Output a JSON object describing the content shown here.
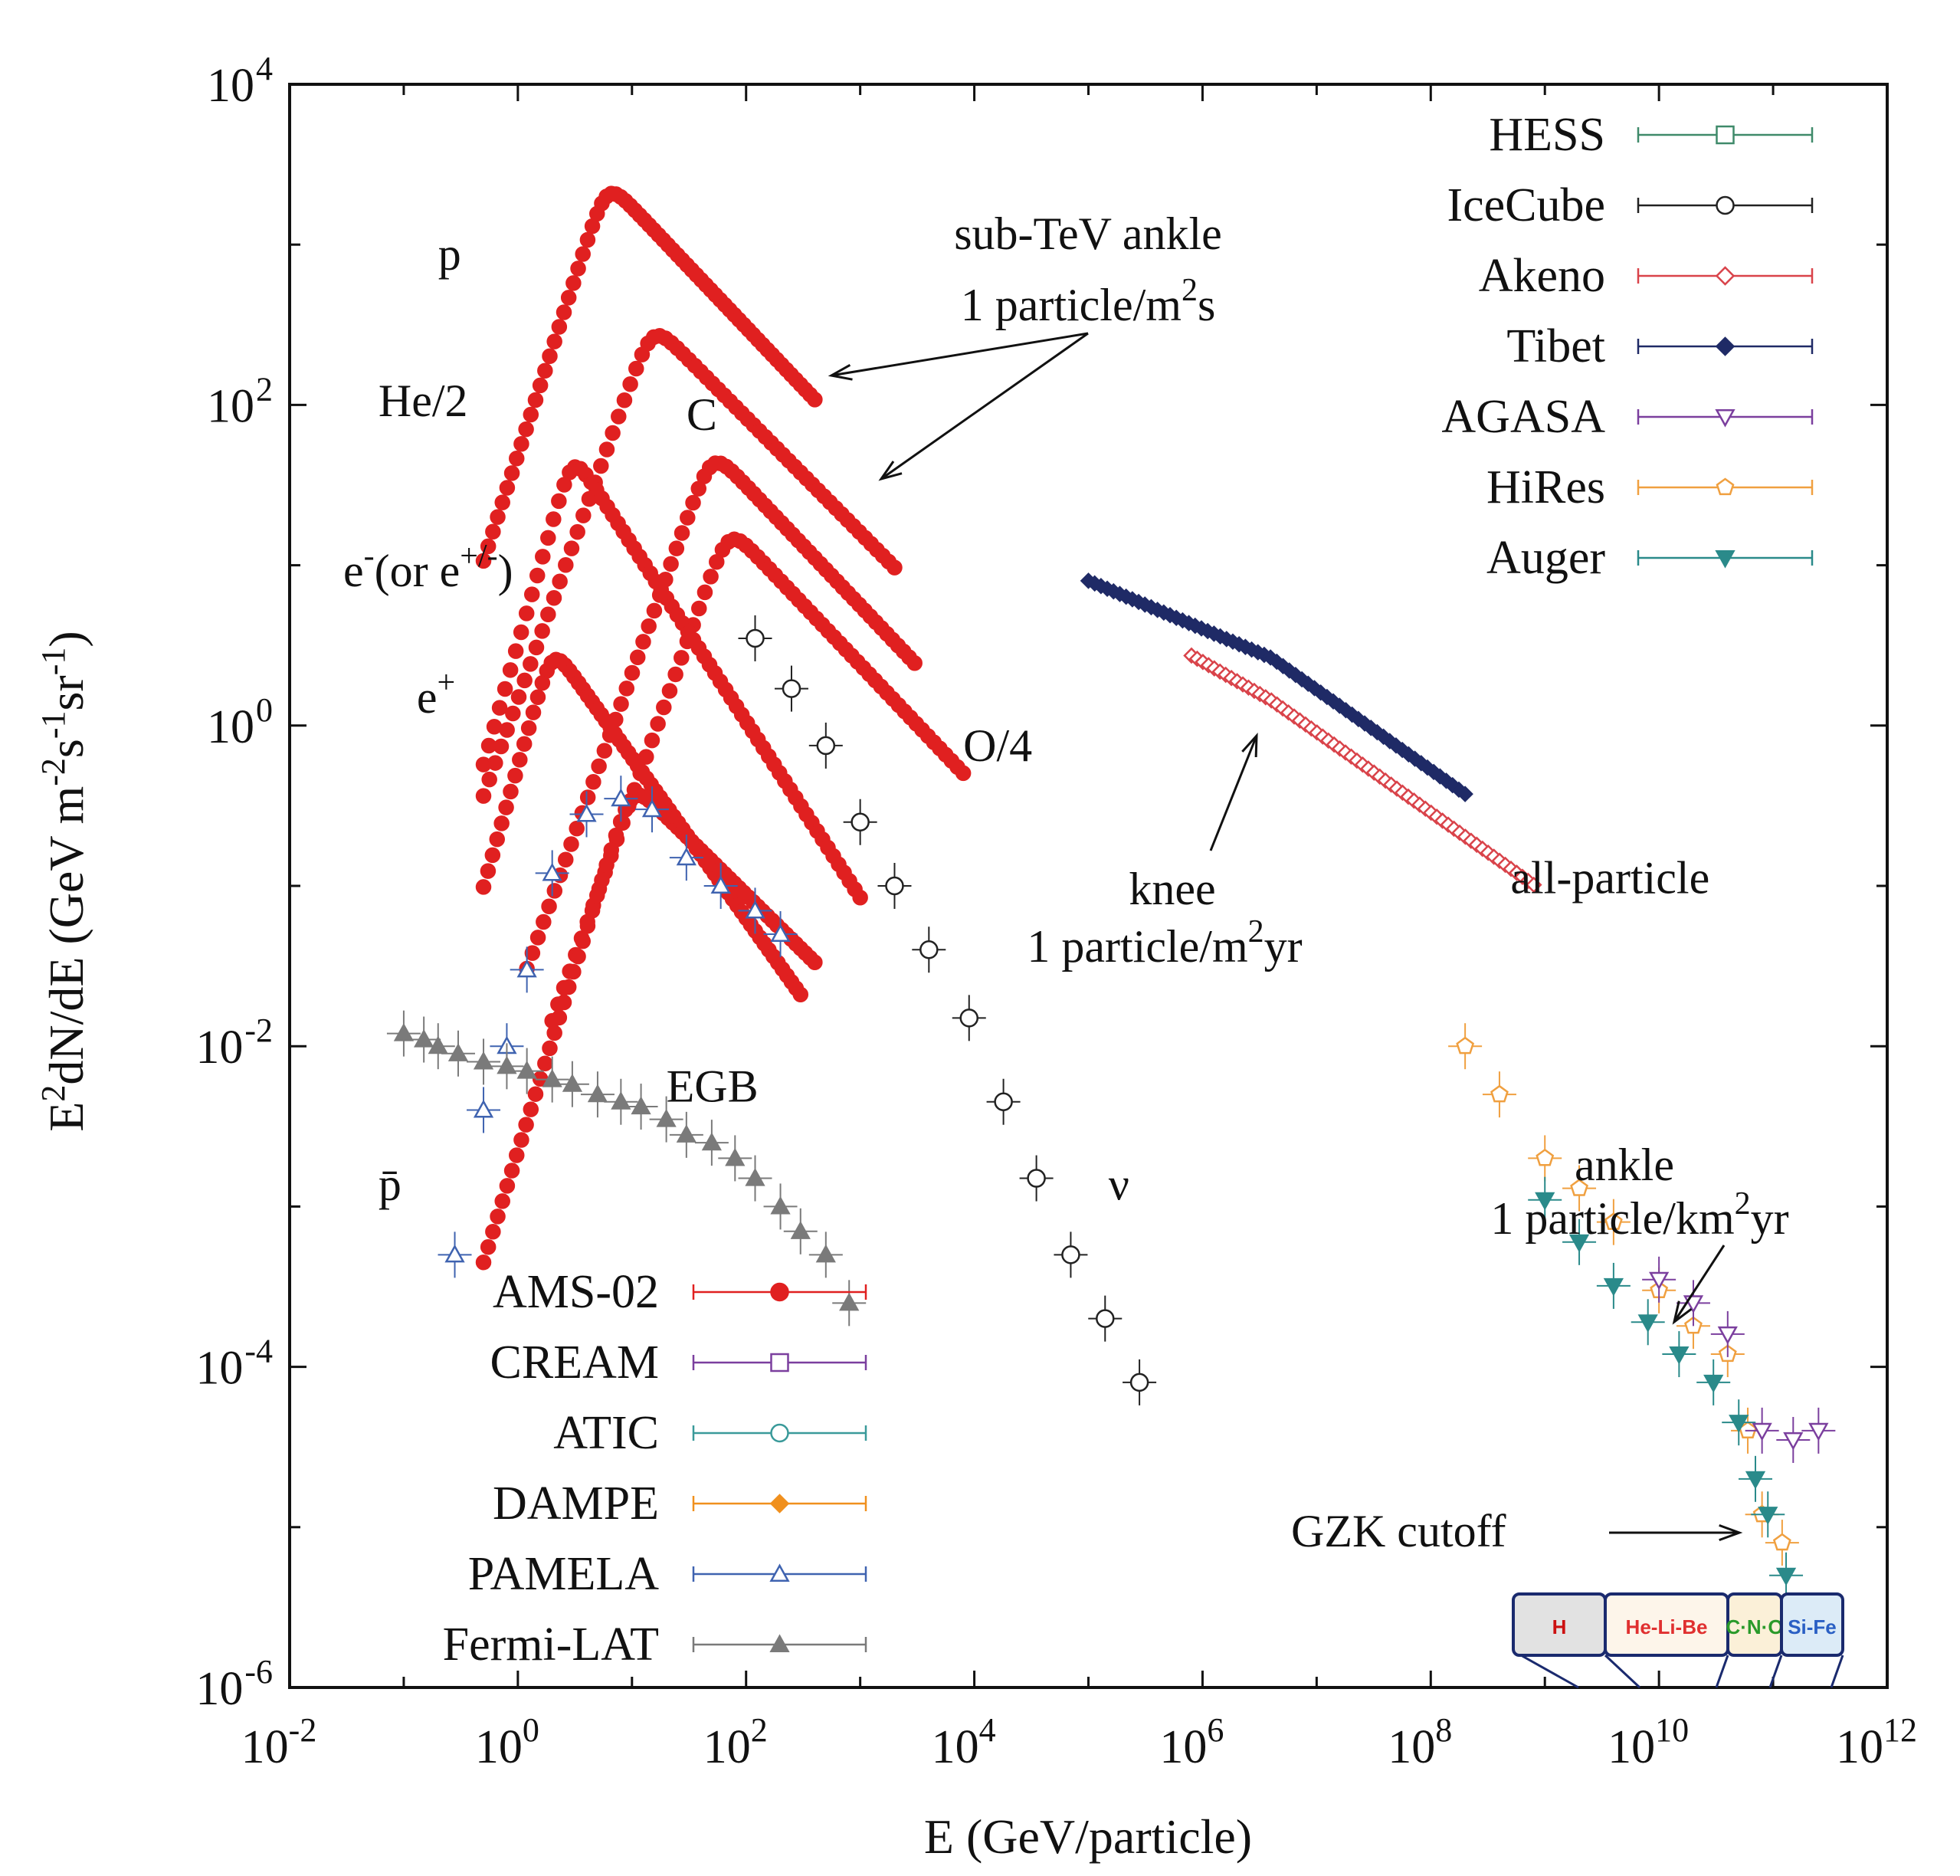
{
  "chart_data": {
    "type": "scatter",
    "xscale": "log",
    "yscale": "log",
    "xlim": [
      0.01,
      1000000000000.0
    ],
    "ylim": [
      1e-06,
      10000.0
    ],
    "xlabel": "E (GeV/particle)",
    "ylabel": "E2dN/dE (GeV m-2s-1sr-1)",
    "ylabel_parts": {
      "base1": "E",
      "sup1": "2",
      "text": "dN/dE (GeV m",
      "sup2": "-2",
      "s": "s",
      "sup3": "-1",
      "sr": "sr",
      "sup4": "-1",
      "close": ")"
    },
    "x_ticks": [
      {
        "value": 0.01,
        "base": "10",
        "exp": "-2"
      },
      {
        "value": 1,
        "base": "10",
        "exp": "0"
      },
      {
        "value": 100,
        "base": "10",
        "exp": "2"
      },
      {
        "value": 10000,
        "base": "10",
        "exp": "4"
      },
      {
        "value": 1000000,
        "base": "10",
        "exp": "6"
      },
      {
        "value": 100000000,
        "base": "10",
        "exp": "8"
      },
      {
        "value": 10000000000,
        "base": "10",
        "exp": "10"
      },
      {
        "value": 1000000000000,
        "base": "10",
        "exp": "12"
      }
    ],
    "y_ticks": [
      {
        "value": 1e-06,
        "base": "10",
        "exp": "-6"
      },
      {
        "value": 0.0001,
        "base": "10",
        "exp": "-4"
      },
      {
        "value": 0.01,
        "base": "10",
        "exp": "-2"
      },
      {
        "value": 1,
        "base": "10",
        "exp": "0"
      },
      {
        "value": 100,
        "base": "10",
        "exp": "2"
      },
      {
        "value": 10000,
        "base": "10",
        "exp": "4"
      }
    ],
    "legend_left": [
      {
        "name": "AMS-02",
        "color": "#e02020",
        "marker": "circle-filled"
      },
      {
        "name": "CREAM",
        "color": "#7b3f9e",
        "marker": "square-open"
      },
      {
        "name": "ATIC",
        "color": "#3a9a9a",
        "marker": "circle-open"
      },
      {
        "name": "DAMPE",
        "color": "#f0901e",
        "marker": "diamond-filled"
      },
      {
        "name": "PAMELA",
        "color": "#3f63b0",
        "marker": "triangle-open"
      },
      {
        "name": "Fermi-LAT",
        "color": "#7a7a7a",
        "marker": "triangle-filled"
      }
    ],
    "legend_right": [
      {
        "name": "HESS",
        "color": "#3f8a6a",
        "marker": "square-open"
      },
      {
        "name": "IceCube",
        "color": "#222222",
        "marker": "circle-open"
      },
      {
        "name": "Akeno",
        "color": "#d9434a",
        "marker": "diamond-open"
      },
      {
        "name": "Tibet",
        "color": "#1f2a66",
        "marker": "diamond-filled"
      },
      {
        "name": "AGASA",
        "color": "#7b3f9e",
        "marker": "triangle-down-open"
      },
      {
        "name": "HiRes",
        "color": "#f0a040",
        "marker": "pentagon-open"
      },
      {
        "name": "Auger",
        "color": "#2a8a8a",
        "marker": "triangle-down-filled"
      }
    ],
    "curve_labels": [
      {
        "text": "p",
        "x": 0.2,
        "y": 700
      },
      {
        "text": "He/2",
        "x": 0.06,
        "y": 85
      },
      {
        "text": "C",
        "x": 30,
        "y": 70
      },
      {
        "text": "O/4",
        "x": 8000,
        "y": 0.6
      },
      {
        "text": "e+",
        "x": 0.13,
        "y": 1.2
      },
      {
        "text": "EGB",
        "x": 20,
        "y": 0.0045
      },
      {
        "text": "p̄",
        "x": 0.06,
        "y": 0.0011
      },
      {
        "text": "ν",
        "x": 150000,
        "y": 0.0011
      },
      {
        "text": "all-particle",
        "x": 500000000.0,
        "y": 0.09
      }
    ],
    "annotations": {
      "sub_tev": {
        "line1": "sub-TeV ankle",
        "line2a": "1 particle/m",
        "sup": "2",
        "line2b": "s"
      },
      "knee": {
        "line1": "knee",
        "line2a": "1 particle/m",
        "sup": "2",
        "line2b": "yr"
      },
      "ankle": {
        "line1": "ankle",
        "line2a": "1 particle/km",
        "sup": "2",
        "line2b": "yr"
      },
      "gzk": {
        "text": "GZK cutoff"
      },
      "electron": {
        "base": "e",
        "sup1": "-",
        "mid": "(or e",
        "sup2": "+/-",
        "close": ")"
      }
    },
    "composition_strip": [
      "H",
      "He-Li-Be",
      "C·N·O",
      "Si-Fe"
    ],
    "series": [
      {
        "name": "p (AMS-02)",
        "color": "#e02020",
        "marker": "circle-filled",
        "model": {
          "peak_x": 6,
          "peak_y": 2000,
          "low_slope": 2.2,
          "high_slope": -0.75,
          "xmin": 0.5,
          "xmax": 400
        }
      },
      {
        "name": "He/2 (AMS-02)",
        "color": "#e02020",
        "marker": "circle-filled",
        "model": {
          "peak_x": 15,
          "peak_y": 260,
          "low_slope": 2.0,
          "high_slope": -0.72,
          "xmin": 0.5,
          "xmax": 2000
        }
      },
      {
        "name": "C (AMS-02)",
        "color": "#e02020",
        "marker": "circle-filled",
        "model": {
          "peak_x": 50,
          "peak_y": 42,
          "low_slope": 2.0,
          "high_slope": -0.75,
          "xmin": 1.2,
          "xmax": 3000
        }
      },
      {
        "name": "O/4 (AMS-02)",
        "color": "#e02020",
        "marker": "circle-filled",
        "model": {
          "peak_x": 70,
          "peak_y": 14,
          "low_slope": 2.0,
          "high_slope": -0.75,
          "xmin": 2,
          "xmax": 8000
        }
      },
      {
        "name": "e- (AMS-02)",
        "color": "#e02020",
        "marker": "circle-filled",
        "model": {
          "peak_x": 3,
          "peak_y": 40,
          "low_slope": 2.5,
          "high_slope": -1.1,
          "xmin": 0.5,
          "xmax": 1000
        }
      },
      {
        "name": "e+ (AMS-02)",
        "color": "#e02020",
        "marker": "circle-filled",
        "model": {
          "peak_x": 2,
          "peak_y": 2.5,
          "low_slope": 2.5,
          "high_slope": -1.0,
          "xmin": 0.5,
          "xmax": 300
        }
      },
      {
        "name": "pbar (AMS-02)",
        "color": "#e02020",
        "marker": "circle-filled",
        "model": {
          "peak_x": 10,
          "peak_y": 0.35,
          "low_slope": 2.3,
          "high_slope": -0.7,
          "xmin": 0.5,
          "xmax": 400
        }
      },
      {
        "name": "pbar (PAMELA)",
        "color": "#3f63b0",
        "marker": "triangle-open",
        "points": [
          [
            0.28,
            0.0005
          ],
          [
            0.5,
            0.004
          ],
          [
            0.8,
            0.01
          ],
          [
            1.2,
            0.03
          ],
          [
            2,
            0.12
          ],
          [
            4,
            0.28
          ],
          [
            8,
            0.35
          ],
          [
            15,
            0.3
          ],
          [
            30,
            0.15
          ],
          [
            60,
            0.1
          ],
          [
            120,
            0.07
          ],
          [
            200,
            0.05
          ]
        ]
      },
      {
        "name": "EGB (Fermi-LAT)",
        "color": "#7a7a7a",
        "marker": "triangle-filled",
        "points": [
          [
            0.1,
            0.012
          ],
          [
            0.15,
            0.011
          ],
          [
            0.2,
            0.01
          ],
          [
            0.3,
            0.009
          ],
          [
            0.5,
            0.008
          ],
          [
            0.8,
            0.0075
          ],
          [
            1.2,
            0.007
          ],
          [
            2,
            0.0062
          ],
          [
            3,
            0.0058
          ],
          [
            5,
            0.005
          ],
          [
            8,
            0.0045
          ],
          [
            12,
            0.0042
          ],
          [
            20,
            0.0035
          ],
          [
            30,
            0.0028
          ],
          [
            50,
            0.0025
          ],
          [
            80,
            0.002
          ],
          [
            120,
            0.0015
          ],
          [
            200,
            0.001
          ],
          [
            300,
            0.0007
          ],
          [
            500,
            0.0005
          ],
          [
            800,
            0.00025
          ]
        ]
      },
      {
        "name": "IceCube nu",
        "color": "#222222",
        "marker": "circle-open",
        "points": [
          [
            120,
            3.5
          ],
          [
            250,
            1.7
          ],
          [
            500,
            0.75
          ],
          [
            1000,
            0.25
          ],
          [
            2000,
            0.1
          ],
          [
            4000,
            0.04
          ],
          [
            9000,
            0.015
          ],
          [
            18000,
            0.0045
          ],
          [
            35000,
            0.0015
          ],
          [
            70000,
            0.0005
          ],
          [
            140000,
            0.0002
          ],
          [
            280000,
            8e-05
          ]
        ]
      },
      {
        "name": "Tibet all-particle",
        "color": "#1f2a66",
        "marker": "diamond-filled",
        "model": {
          "anchor_x": 100000,
          "anchor_y": 8,
          "slope": -0.3,
          "xmin": 100000,
          "xmax": 200000000,
          "knee_x": 4000000,
          "slope2": -0.5
        }
      },
      {
        "name": "Akeno all-particle",
        "color": "#d9434a",
        "marker": "diamond-open",
        "model": {
          "anchor_x": 1000000,
          "anchor_y": 2.5,
          "slope": -0.4,
          "xmin": 800000,
          "xmax": 800000000,
          "knee_x": 4000000,
          "slope2": -0.5
        }
      },
      {
        "name": "HiRes",
        "color": "#f0a040",
        "marker": "pentagon-open",
        "points": [
          [
            200000000.0,
            0.01
          ],
          [
            400000000.0,
            0.005
          ],
          [
            1000000000.0,
            0.002
          ],
          [
            2000000000.0,
            0.0013
          ],
          [
            4000000000.0,
            0.0008
          ],
          [
            10000000000.0,
            0.0003
          ],
          [
            20000000000.0,
            0.00018
          ],
          [
            40000000000.0,
            0.00012
          ],
          [
            60000000000.0,
            4e-05
          ],
          [
            80000000000.0,
            1.2e-05
          ],
          [
            120000000000.0,
            8e-06
          ]
        ]
      },
      {
        "name": "Auger",
        "color": "#2a8a8a",
        "marker": "triangle-down-filled",
        "points": [
          [
            1000000000.0,
            0.0011
          ],
          [
            2000000000.0,
            0.0006
          ],
          [
            4000000000.0,
            0.00032
          ],
          [
            8000000000.0,
            0.00019
          ],
          [
            15000000000.0,
            0.00012
          ],
          [
            30000000000.0,
            8e-05
          ],
          [
            50000000000.0,
            4.5e-05
          ],
          [
            70000000000.0,
            2e-05
          ],
          [
            90000000000.0,
            1.2e-05
          ],
          [
            130000000000.0,
            5e-06
          ]
        ]
      },
      {
        "name": "AGASA",
        "color": "#7b3f9e",
        "marker": "triangle-down-open",
        "points": [
          [
            10000000000.0,
            0.00035
          ],
          [
            20000000000.0,
            0.00025
          ],
          [
            40000000000.0,
            0.00016
          ],
          [
            80000000000.0,
            4e-05
          ],
          [
            150000000000.0,
            3.5e-05
          ],
          [
            250000000000.0,
            4e-05
          ]
        ]
      }
    ]
  }
}
